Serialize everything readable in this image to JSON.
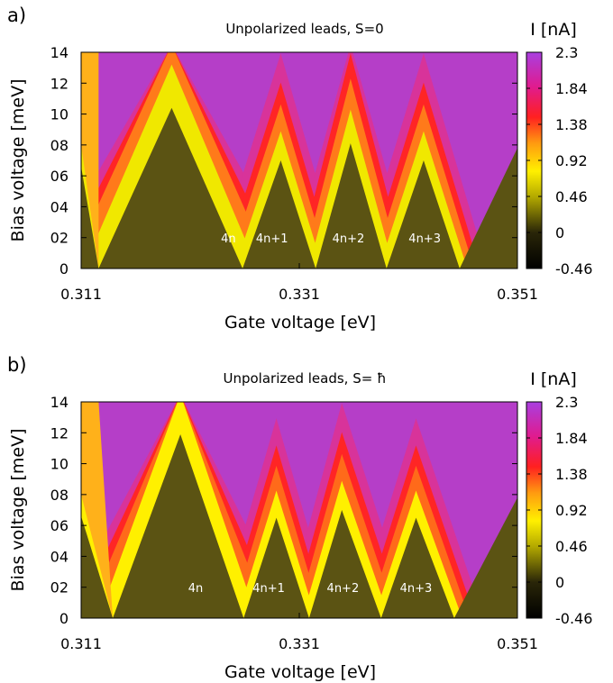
{
  "chart_data": [
    {
      "panel_label": "a)",
      "type": "heatmap",
      "title": "Unpolarized leads, S=0",
      "xlabel": "Gate voltage [eV]",
      "ylabel": "Bias voltage [meV]",
      "colorbar_label": "I [nA]",
      "xlim": [
        0.311,
        0.351
      ],
      "ylim": [
        0,
        14
      ],
      "x_ticks": [
        "0.311",
        "0.331",
        "0.351"
      ],
      "y_ticks": [
        "0",
        "02",
        "04",
        "06",
        "08",
        "10",
        "12",
        "14"
      ],
      "colorbar_ticks": [
        "2.3",
        "1.84",
        "1.38",
        "0.92",
        "0.46",
        "0",
        "-0.46"
      ],
      "colorbar_range": [
        -0.46,
        2.3
      ],
      "regions": [
        {
          "label": "4n",
          "x": 0.3245
        },
        {
          "label": "4n+1",
          "x": 0.3285
        },
        {
          "label": "4n+2",
          "x": 0.3355
        },
        {
          "label": "4n+3",
          "x": 0.3425
        }
      ],
      "blockade_diamonds": [
        {
          "left": 0.3126,
          "apex_x": 0.3193,
          "apex_y": 10.4,
          "right": 0.3258,
          "label": "4n"
        },
        {
          "left": 0.3258,
          "apex_x": 0.3293,
          "apex_y": 7.0,
          "right": 0.3325,
          "label": "4n+1"
        },
        {
          "left": 0.3325,
          "apex_x": 0.3357,
          "apex_y": 8.1,
          "right": 0.339,
          "label": "4n+2"
        },
        {
          "left": 0.339,
          "apex_x": 0.3424,
          "apex_y": 7.0,
          "right": 0.3457,
          "label": "4n+3"
        }
      ],
      "colors": {
        "blockade": "#5b5313",
        "yellow": "#f0e800",
        "orange": "#ff7a1a",
        "red": "#ff2525",
        "magenta": "#d8339a",
        "purple": "#b53ec8"
      }
    },
    {
      "panel_label": "b)",
      "type": "heatmap",
      "title": "Unpolarized leads, S= ħ",
      "xlabel": "Gate voltage [eV]",
      "ylabel": "Bias voltage [meV]",
      "colorbar_label": "I [nA]",
      "xlim": [
        0.311,
        0.351
      ],
      "ylim": [
        0,
        14
      ],
      "x_ticks": [
        "0.311",
        "0.331",
        "0.351"
      ],
      "y_ticks": [
        "0",
        "02",
        "04",
        "06",
        "08",
        "10",
        "12",
        "14"
      ],
      "colorbar_ticks": [
        "2.3",
        "1.84",
        "1.38",
        "0.92",
        "0.46",
        "0",
        "-0.46"
      ],
      "colorbar_range": [
        -0.46,
        2.3
      ],
      "regions": [
        {
          "label": "4n",
          "x": 0.3215
        },
        {
          "label": "4n+1",
          "x": 0.3282
        },
        {
          "label": "4n+2",
          "x": 0.335
        },
        {
          "label": "4n+3",
          "x": 0.3417
        }
      ],
      "blockade_diamonds": [
        {
          "left": 0.3139,
          "apex_x": 0.3201,
          "apex_y": 11.9,
          "right": 0.3259,
          "label": "4n"
        },
        {
          "left": 0.3259,
          "apex_x": 0.3289,
          "apex_y": 6.5,
          "right": 0.3319,
          "label": "4n+1"
        },
        {
          "left": 0.3319,
          "apex_x": 0.3349,
          "apex_y": 7.0,
          "right": 0.3385,
          "label": "4n+2"
        },
        {
          "left": 0.3385,
          "apex_x": 0.3417,
          "apex_y": 6.5,
          "right": 0.3452,
          "label": "4n+3"
        }
      ],
      "colors": {
        "blockade": "#5b5313",
        "yellow": "#fff000",
        "orange": "#ff6a1a",
        "red": "#ff2525",
        "magenta": "#d8339a",
        "purple": "#b53ec8"
      }
    }
  ]
}
